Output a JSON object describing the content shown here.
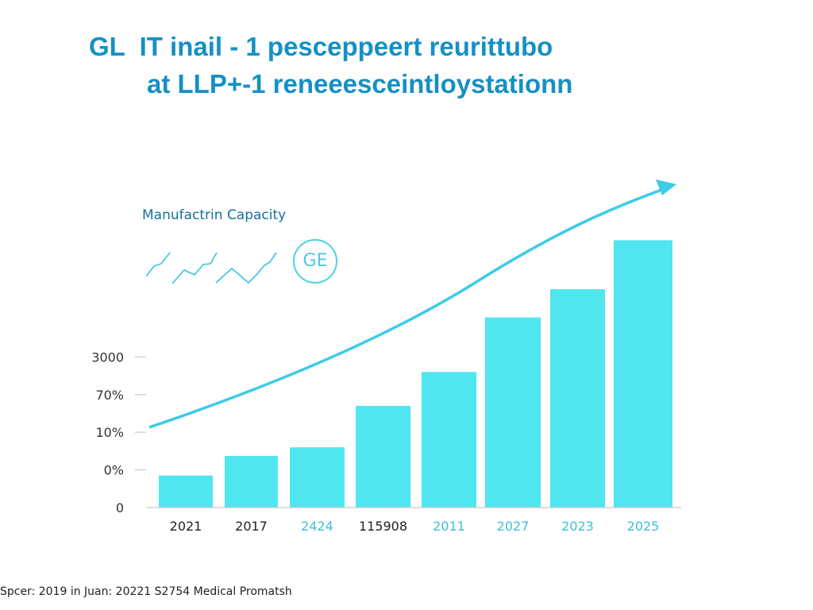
{
  "title_line1": "GL  IT inail - 1 pesceppeert reurittubo",
  "title_line2": "at LLP+-1 reneeesceintloystationn",
  "subtitle": "Manufactrin Capacity",
  "badge": "GE",
  "source": "Spcer: 2019 in Juan: 20221 S2754 Medical Promatsh",
  "colors": {
    "title": "#1590c4",
    "bar": "#50e6ef",
    "trend": "#3ccbe8",
    "tick_highlight": "#3cc0da"
  },
  "chart_data": {
    "type": "bar",
    "categories": [
      "2021",
      "2017",
      "2424",
      "115908",
      "2011",
      "2027",
      "2023",
      "2025"
    ],
    "category_highlight": [
      false,
      false,
      true,
      false,
      true,
      true,
      true,
      true
    ],
    "values": [
      0.85,
      1.37,
      1.6,
      2.7,
      3.6,
      5.05,
      5.8,
      7.1
    ],
    "y_tick_labels": [
      "0",
      "0%",
      "10%",
      "70%",
      "3000"
    ],
    "ylim": [
      0,
      7.5
    ],
    "grid": false,
    "trend_arrow": true,
    "title": "",
    "xlabel": "",
    "ylabel": ""
  }
}
